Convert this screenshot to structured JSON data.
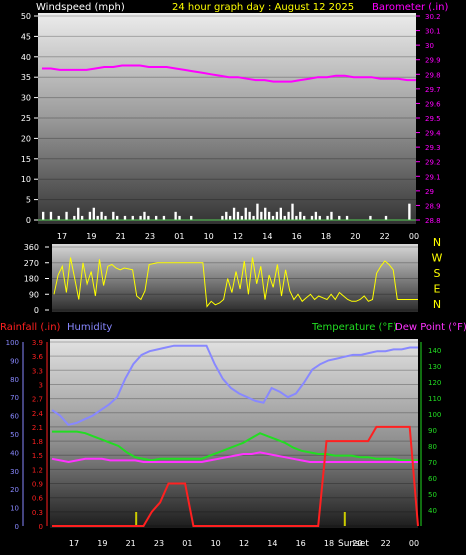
{
  "header": {
    "wind_label": "Windspeed (mph)",
    "title": "24 hour graph day : August 12 2025",
    "baro_label": "Barometer (.in)"
  },
  "colors": {
    "background": "#000000",
    "wind": "#ffffff",
    "barometer": "#ff00ff",
    "direction": "#ffff00",
    "rain": "#ff2020",
    "humidity": "#8888ff",
    "temperature": "#22dd22",
    "dewpoint": "#ff33ff",
    "title": "#ffff00",
    "axis_text": "#ffffff",
    "sunrise_sunset_marker": "#cccc00"
  },
  "x_ticks": [
    "17",
    "19",
    "21",
    "23",
    "01",
    "10",
    "12",
    "14",
    "16",
    "18",
    "20",
    "22",
    "00"
  ],
  "bottom_annotation": "Sunset",
  "chart_data": [
    {
      "type": "line",
      "name": "wind-barometer",
      "left_axis": {
        "label": "Windspeed (mph)",
        "ylim": [
          0,
          50
        ],
        "ticks": [
          "0",
          "5",
          "10",
          "15",
          "20",
          "25",
          "30",
          "35",
          "40",
          "45",
          "50"
        ]
      },
      "right_axis": {
        "label": "Barometer (.in)",
        "ylim": [
          28.8,
          30.2
        ],
        "ticks": [
          "28.8",
          "28.9",
          "29",
          "29.1",
          "29.2",
          "29.3",
          "29.4",
          "29.5",
          "29.6",
          "29.7",
          "29.8",
          "29.9",
          "30",
          "30.1",
          "30.2"
        ]
      },
      "series": [
        {
          "name": "Windspeed",
          "axis": "left",
          "values": [
            2,
            0,
            2,
            0,
            1,
            0,
            2,
            0,
            1,
            3,
            1,
            0,
            2,
            3,
            1,
            2,
            1,
            0,
            2,
            1,
            0,
            1,
            0,
            1,
            0,
            1,
            2,
            1,
            0,
            1,
            0,
            1,
            0,
            0,
            2,
            1,
            0,
            0,
            1,
            0,
            0,
            0,
            0,
            0,
            0,
            0,
            1,
            2,
            1,
            3,
            2,
            1,
            3,
            2,
            1,
            4,
            2,
            3,
            2,
            1,
            2,
            3,
            1,
            2,
            4,
            1,
            2,
            1,
            0,
            1,
            2,
            1,
            0,
            1,
            2,
            0,
            1,
            0,
            1,
            0,
            0,
            0,
            0,
            0,
            1,
            0,
            0,
            0,
            1,
            0,
            0,
            0,
            0,
            0,
            4,
            0
          ]
        },
        {
          "name": "Barometer",
          "axis": "right",
          "values": [
            29.84,
            29.84,
            29.83,
            29.83,
            29.83,
            29.83,
            29.84,
            29.85,
            29.85,
            29.86,
            29.86,
            29.86,
            29.85,
            29.85,
            29.85,
            29.84,
            29.83,
            29.82,
            29.81,
            29.8,
            29.79,
            29.78,
            29.78,
            29.77,
            29.76,
            29.76,
            29.75,
            29.75,
            29.75,
            29.76,
            29.77,
            29.78,
            29.78,
            29.79,
            29.79,
            29.78,
            29.78,
            29.78,
            29.77,
            29.77,
            29.77,
            29.76,
            29.76
          ]
        }
      ]
    },
    {
      "type": "line",
      "name": "wind-direction",
      "ylim": [
        0,
        360
      ],
      "left_ticks": [
        "0",
        "90",
        "180",
        "270",
        "360"
      ],
      "right_labels": [
        "N",
        "W",
        "S",
        "E",
        "N"
      ],
      "series": [
        {
          "name": "Wind direction",
          "values": [
            90,
            200,
            250,
            100,
            300,
            180,
            60,
            270,
            150,
            220,
            80,
            290,
            140,
            250,
            260,
            240,
            230,
            240,
            235,
            230,
            80,
            60,
            110,
            260,
            265,
            270,
            270,
            270,
            270,
            270,
            270,
            270,
            270,
            270,
            270,
            270,
            270,
            20,
            50,
            30,
            40,
            60,
            180,
            100,
            220,
            120,
            280,
            90,
            300,
            150,
            250,
            60,
            200,
            130,
            260,
            80,
            230,
            110,
            60,
            90,
            50,
            70,
            90,
            60,
            80,
            70,
            60,
            90,
            60,
            100,
            80,
            60,
            50,
            50,
            60,
            80,
            50,
            60,
            210,
            250,
            280,
            260,
            230,
            60,
            60,
            60,
            60,
            60,
            60
          ]
        }
      ]
    },
    {
      "type": "line",
      "name": "rain-humidity-temperature",
      "axes": {
        "humidity": {
          "label": "Humidity",
          "ylim": [
            0,
            100
          ],
          "ticks": [
            "0",
            "10",
            "20",
            "30",
            "40",
            "50",
            "60",
            "70",
            "80",
            "90",
            "100"
          ]
        },
        "rainfall": {
          "label": "Rainfall (.in)",
          "ylim": [
            0,
            3.9
          ],
          "ticks": [
            "0",
            "0.3",
            "0.6",
            "0.9",
            "1.2",
            "1.5",
            "1.8",
            "2.1",
            "2.4",
            "2.7",
            "3",
            "3.3",
            "3.6",
            "3.9"
          ]
        },
        "temperature": {
          "label": "Temperature (°F)",
          "ylim": [
            30,
            145
          ],
          "ticks": [
            "40",
            "50",
            "60",
            "70",
            "80",
            "90",
            "100",
            "110",
            "120",
            "130",
            "140"
          ]
        }
      },
      "legend_temperature": "Temperature (°F)",
      "legend_dewpoint": "Dew Point (°F)",
      "series": [
        {
          "name": "Humidity",
          "axis": "humidity",
          "values": [
            63,
            60,
            55,
            56,
            58,
            60,
            63,
            66,
            70,
            80,
            88,
            93,
            95,
            96,
            97,
            98,
            98,
            98,
            98,
            98,
            88,
            80,
            75,
            72,
            70,
            68,
            67,
            75,
            73,
            70,
            72,
            78,
            85,
            88,
            90,
            91,
            92,
            93,
            93,
            94,
            95,
            95,
            96,
            96,
            97,
            97
          ]
        },
        {
          "name": "Rainfall",
          "axis": "rainfall",
          "values": [
            0,
            0,
            0,
            0,
            0,
            0,
            0,
            0,
            0,
            0,
            0,
            0,
            0.3,
            0.5,
            0.9,
            0.9,
            0.9,
            0,
            0,
            0,
            0,
            0,
            0,
            0,
            0,
            0,
            0,
            0,
            0,
            0,
            0,
            0,
            0,
            1.8,
            1.8,
            1.8,
            1.8,
            1.8,
            1.8,
            2.1,
            2.1,
            2.1,
            2.1,
            2.1,
            0
          ]
        },
        {
          "name": "Temperature",
          "axis": "temperature",
          "values": [
            89,
            89,
            89,
            89,
            88,
            86,
            84,
            82,
            80,
            76,
            73,
            72,
            71,
            72,
            72,
            72,
            72,
            72,
            72,
            74,
            76,
            78,
            80,
            82,
            85,
            88,
            86,
            84,
            82,
            79,
            77,
            76,
            75,
            75,
            74,
            74,
            74,
            73,
            73,
            72,
            72,
            72,
            71,
            71,
            71
          ]
        },
        {
          "name": "Dew Point",
          "axis": "temperature",
          "values": [
            72,
            71,
            70,
            71,
            72,
            72,
            72,
            71,
            71,
            71,
            71,
            70,
            70,
            70,
            70,
            70,
            70,
            70,
            70,
            71,
            72,
            73,
            74,
            75,
            75,
            76,
            75,
            74,
            73,
            72,
            71,
            70,
            70,
            70,
            70,
            70,
            70,
            70,
            70,
            70,
            70,
            70,
            70,
            70,
            70
          ]
        }
      ],
      "events": [
        {
          "label": "",
          "x_position_index": 0.23,
          "type": "marker"
        },
        {
          "label": "Sunset",
          "x_position_index": 0.8,
          "type": "marker"
        }
      ]
    }
  ]
}
